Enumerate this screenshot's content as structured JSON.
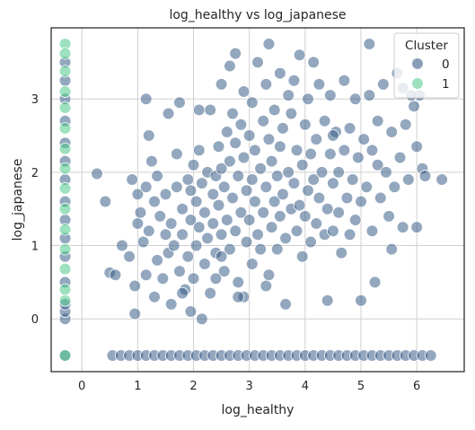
{
  "chart_data": {
    "type": "scatter",
    "title": "log_healthy vs log_japanese",
    "xlabel": "log_healthy",
    "ylabel": "log_japanese",
    "xlim": [
      -0.55,
      6.85
    ],
    "ylim": [
      -0.72,
      3.97
    ],
    "x_ticks": [
      0,
      1,
      2,
      3,
      4,
      5,
      6
    ],
    "y_ticks": [
      0,
      1,
      2,
      3
    ],
    "grid": true,
    "legend": {
      "title": "Cluster",
      "placement": "top-right"
    },
    "series": [
      {
        "name": "0",
        "color": "#3b5f89",
        "points": [
          [
            -0.3,
            -0.5
          ],
          [
            -0.3,
            0.0
          ],
          [
            -0.3,
            0.1
          ],
          [
            -0.3,
            0.2
          ],
          [
            -0.3,
            0.5
          ],
          [
            -0.3,
            0.85
          ],
          [
            -0.3,
            1.1
          ],
          [
            -0.3,
            1.35
          ],
          [
            -0.3,
            1.6
          ],
          [
            -0.3,
            1.9
          ],
          [
            -0.3,
            2.15
          ],
          [
            -0.3,
            2.4
          ],
          [
            -0.3,
            2.7
          ],
          [
            -0.3,
            3.0
          ],
          [
            -0.3,
            3.25
          ],
          [
            -0.3,
            3.5
          ],
          [
            0.55,
            -0.5
          ],
          [
            0.7,
            -0.5
          ],
          [
            0.85,
            -0.5
          ],
          [
            1.0,
            -0.5
          ],
          [
            1.15,
            -0.5
          ],
          [
            1.3,
            -0.5
          ],
          [
            1.45,
            -0.5
          ],
          [
            1.6,
            -0.5
          ],
          [
            1.75,
            -0.5
          ],
          [
            1.9,
            -0.5
          ],
          [
            2.05,
            -0.5
          ],
          [
            2.2,
            -0.5
          ],
          [
            2.35,
            -0.5
          ],
          [
            2.5,
            -0.5
          ],
          [
            2.65,
            -0.5
          ],
          [
            2.8,
            -0.5
          ],
          [
            2.95,
            -0.5
          ],
          [
            3.1,
            -0.5
          ],
          [
            3.25,
            -0.5
          ],
          [
            3.4,
            -0.5
          ],
          [
            3.55,
            -0.5
          ],
          [
            3.7,
            -0.5
          ],
          [
            3.85,
            -0.5
          ],
          [
            4.0,
            -0.5
          ],
          [
            4.15,
            -0.5
          ],
          [
            4.3,
            -0.5
          ],
          [
            4.45,
            -0.5
          ],
          [
            4.6,
            -0.5
          ],
          [
            4.75,
            -0.5
          ],
          [
            4.9,
            -0.5
          ],
          [
            5.05,
            -0.5
          ],
          [
            5.2,
            -0.5
          ],
          [
            5.35,
            -0.5
          ],
          [
            5.5,
            -0.5
          ],
          [
            5.65,
            -0.5
          ],
          [
            5.8,
            -0.5
          ],
          [
            5.95,
            -0.5
          ],
          [
            6.1,
            -0.5
          ],
          [
            6.25,
            -0.5
          ],
          [
            0.27,
            1.98
          ],
          [
            0.42,
            1.6
          ],
          [
            0.5,
            0.63
          ],
          [
            0.6,
            0.6
          ],
          [
            0.72,
            1.0
          ],
          [
            0.85,
            0.85
          ],
          [
            0.9,
            1.9
          ],
          [
            0.95,
            0.45
          ],
          [
            0.95,
            0.07
          ],
          [
            1.0,
            1.3
          ],
          [
            1.0,
            1.7
          ],
          [
            1.05,
            1.45
          ],
          [
            1.1,
            1.05
          ],
          [
            1.15,
            0.6
          ],
          [
            1.15,
            1.8
          ],
          [
            1.2,
            1.2
          ],
          [
            1.15,
            3.0
          ],
          [
            1.2,
            2.5
          ],
          [
            1.25,
            2.15
          ],
          [
            1.3,
            0.3
          ],
          [
            1.3,
            1.6
          ],
          [
            1.35,
            1.95
          ],
          [
            1.35,
            0.8
          ],
          [
            1.4,
            1.4
          ],
          [
            1.45,
            0.55
          ],
          [
            1.5,
            1.15
          ],
          [
            1.5,
            1.7
          ],
          [
            1.55,
            2.8
          ],
          [
            1.55,
            0.9
          ],
          [
            1.6,
            1.3
          ],
          [
            1.6,
            0.2
          ],
          [
            1.65,
            1.0
          ],
          [
            1.7,
            1.8
          ],
          [
            1.7,
            2.25
          ],
          [
            1.75,
            0.65
          ],
          [
            1.75,
            2.95
          ],
          [
            1.8,
            1.5
          ],
          [
            1.8,
            1.15
          ],
          [
            1.85,
            0.4
          ],
          [
            1.9,
            1.9
          ],
          [
            1.9,
            0.85
          ],
          [
            1.95,
            1.35
          ],
          [
            1.95,
            1.75
          ],
          [
            2.0,
            2.1
          ],
          [
            2.0,
            0.55
          ],
          [
            2.05,
            1.0
          ],
          [
            2.05,
            1.6
          ],
          [
            2.1,
            1.25
          ],
          [
            2.1,
            2.3
          ],
          [
            2.1,
            2.85
          ],
          [
            2.15,
            0.0
          ],
          [
            2.15,
            1.85
          ],
          [
            2.2,
            0.75
          ],
          [
            2.2,
            1.45
          ],
          [
            2.25,
            2.0
          ],
          [
            2.25,
            1.1
          ],
          [
            2.3,
            2.85
          ],
          [
            2.3,
            0.35
          ],
          [
            2.35,
            1.7
          ],
          [
            2.35,
            1.3
          ],
          [
            2.4,
            1.95
          ],
          [
            2.4,
            0.9
          ],
          [
            2.45,
            2.35
          ],
          [
            2.45,
            1.55
          ],
          [
            2.5,
            3.2
          ],
          [
            2.5,
            1.15
          ],
          [
            2.5,
            2.05
          ],
          [
            2.55,
            0.65
          ],
          [
            2.55,
            1.8
          ],
          [
            2.6,
            2.55
          ],
          [
            2.6,
            1.35
          ],
          [
            2.65,
            3.45
          ],
          [
            2.65,
            2.15
          ],
          [
            2.65,
            0.95
          ],
          [
            2.7,
            1.65
          ],
          [
            2.7,
            2.8
          ],
          [
            2.75,
            3.62
          ],
          [
            2.75,
            1.2
          ],
          [
            2.75,
            2.4
          ],
          [
            2.8,
            1.95
          ],
          [
            2.8,
            0.5
          ],
          [
            2.85,
            2.65
          ],
          [
            2.85,
            1.45
          ],
          [
            2.9,
            3.1
          ],
          [
            2.9,
            0.3
          ],
          [
            2.9,
            2.2
          ],
          [
            2.95,
            1.75
          ],
          [
            2.95,
            1.05
          ],
          [
            3.0,
            2.5
          ],
          [
            3.0,
            1.35
          ],
          [
            3.05,
            2.95
          ],
          [
            3.05,
            1.9
          ],
          [
            3.05,
            0.75
          ],
          [
            3.1,
            1.6
          ],
          [
            3.1,
            2.3
          ],
          [
            3.15,
            3.5
          ],
          [
            3.15,
            1.15
          ],
          [
            3.2,
            2.05
          ],
          [
            3.2,
            0.95
          ],
          [
            3.25,
            2.7
          ],
          [
            3.25,
            1.45
          ],
          [
            3.3,
            1.8
          ],
          [
            3.3,
            3.2
          ],
          [
            3.35,
            3.75
          ],
          [
            3.35,
            2.45
          ],
          [
            3.35,
            0.6
          ],
          [
            3.4,
            1.25
          ],
          [
            3.4,
            2.15
          ],
          [
            3.45,
            1.6
          ],
          [
            3.45,
            2.85
          ],
          [
            3.5,
            1.95
          ],
          [
            3.5,
            0.95
          ],
          [
            3.55,
            3.35
          ],
          [
            3.55,
            2.35
          ],
          [
            3.55,
            1.4
          ],
          [
            3.6,
            1.7
          ],
          [
            3.6,
            2.6
          ],
          [
            3.65,
            0.2
          ],
          [
            3.65,
            1.1
          ],
          [
            3.7,
            3.05
          ],
          [
            3.7,
            2.0
          ],
          [
            3.75,
            1.5
          ],
          [
            3.75,
            2.8
          ],
          [
            3.8,
            3.25
          ],
          [
            3.8,
            1.85
          ],
          [
            3.85,
            2.3
          ],
          [
            3.85,
            1.2
          ],
          [
            3.9,
            3.6
          ],
          [
            3.9,
            1.55
          ],
          [
            3.95,
            2.1
          ],
          [
            3.95,
            0.85
          ],
          [
            4.0,
            2.65
          ],
          [
            4.0,
            1.4
          ],
          [
            4.05,
            1.75
          ],
          [
            4.05,
            3.0
          ],
          [
            4.1,
            2.25
          ],
          [
            4.1,
            1.05
          ],
          [
            4.15,
            1.9
          ],
          [
            4.15,
            3.5
          ],
          [
            4.2,
            1.3
          ],
          [
            4.2,
            2.45
          ],
          [
            4.25,
            1.65
          ],
          [
            4.25,
            3.2
          ],
          [
            4.3,
            2.0
          ],
          [
            4.35,
            1.15
          ],
          [
            4.35,
            2.7
          ],
          [
            4.4,
            1.5
          ],
          [
            4.4,
            0.25
          ],
          [
            4.45,
            2.25
          ],
          [
            4.45,
            3.05
          ],
          [
            4.5,
            1.85
          ],
          [
            4.5,
            1.2
          ],
          [
            4.55,
            2.55
          ],
          [
            4.6,
            1.45
          ],
          [
            4.6,
            2.0
          ],
          [
            4.65,
            0.9
          ],
          [
            4.7,
            3.25
          ],
          [
            4.7,
            2.3
          ],
          [
            4.75,
            1.65
          ],
          [
            4.8,
            1.15
          ],
          [
            4.8,
            2.6
          ],
          [
            4.85,
            1.9
          ],
          [
            4.9,
            1.35
          ],
          [
            4.9,
            3.0
          ],
          [
            4.95,
            2.2
          ],
          [
            5.0,
            1.6
          ],
          [
            5.0,
            0.25
          ],
          [
            5.05,
            2.45
          ],
          [
            5.1,
            1.8
          ],
          [
            5.15,
            3.05
          ],
          [
            5.2,
            2.3
          ],
          [
            5.2,
            1.2
          ],
          [
            5.25,
            0.5
          ],
          [
            5.3,
            2.1
          ],
          [
            5.3,
            2.7
          ],
          [
            5.35,
            1.65
          ],
          [
            5.4,
            3.2
          ],
          [
            5.45,
            2.0
          ],
          [
            5.5,
            1.4
          ],
          [
            5.55,
            0.95
          ],
          [
            5.55,
            2.55
          ],
          [
            5.6,
            1.8
          ],
          [
            5.65,
            3.35
          ],
          [
            5.7,
            2.2
          ],
          [
            5.75,
            1.25
          ],
          [
            5.8,
            2.65
          ],
          [
            5.85,
            1.9
          ],
          [
            5.95,
            2.9
          ],
          [
            6.0,
            2.35
          ],
          [
            6.0,
            1.25
          ],
          [
            6.05,
            3.05
          ],
          [
            6.1,
            2.05
          ],
          [
            6.15,
            1.95
          ],
          [
            6.45,
            1.9
          ],
          [
            5.75,
            3.15
          ],
          [
            5.9,
            3.05
          ],
          [
            6.0,
            3.5
          ],
          [
            5.15,
            3.75
          ],
          [
            4.5,
            2.5
          ],
          [
            3.3,
            0.45
          ],
          [
            2.8,
            0.3
          ],
          [
            2.4,
            0.55
          ],
          [
            1.8,
            0.35
          ],
          [
            1.95,
            0.1
          ],
          [
            2.5,
            0.85
          ]
        ]
      },
      {
        "name": "1",
        "color": "#4fc889",
        "points": [
          [
            -0.3,
            3.75
          ],
          [
            -0.3,
            3.62
          ],
          [
            -0.3,
            3.38
          ],
          [
            -0.3,
            3.1
          ],
          [
            -0.3,
            2.88
          ],
          [
            -0.3,
            2.6
          ],
          [
            -0.3,
            2.32
          ],
          [
            -0.3,
            2.05
          ],
          [
            -0.3,
            1.78
          ],
          [
            -0.3,
            1.5
          ],
          [
            -0.3,
            1.22
          ],
          [
            -0.3,
            0.95
          ],
          [
            -0.3,
            0.68
          ],
          [
            -0.3,
            0.4
          ],
          [
            -0.3,
            0.25
          ],
          [
            -0.3,
            -0.5
          ]
        ]
      }
    ]
  }
}
